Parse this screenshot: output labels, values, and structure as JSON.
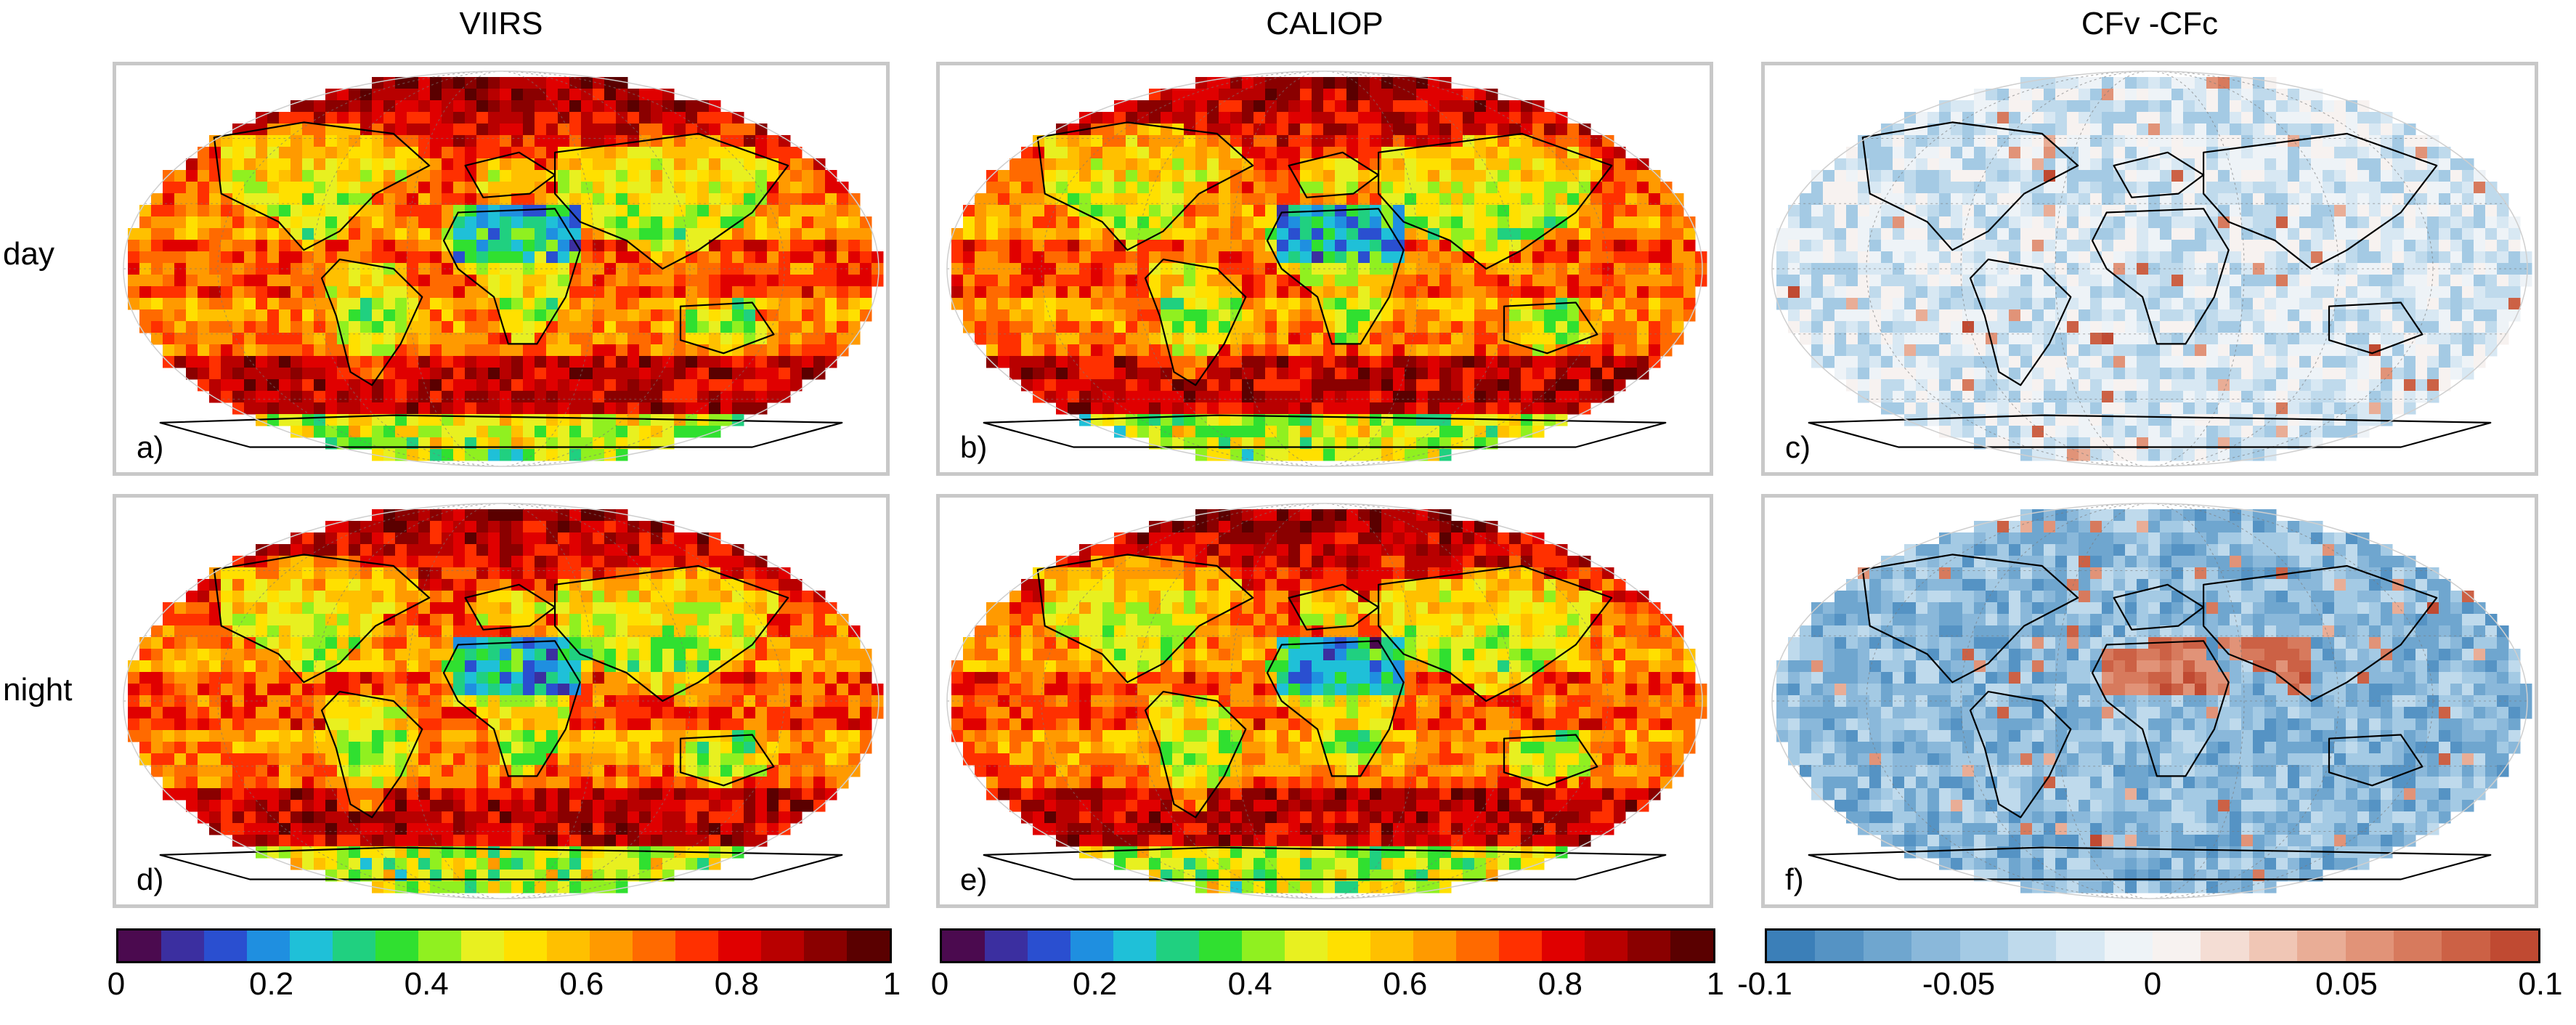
{
  "columns": [
    {
      "title": "VIIRS"
    },
    {
      "title": "CALIOP"
    },
    {
      "title": "CFv -CFc"
    }
  ],
  "rows": [
    {
      "label": "day"
    },
    {
      "label": "night"
    }
  ],
  "panels": [
    {
      "letter": "a)",
      "variable": "VIIRS cloud fraction",
      "time": "day",
      "colormap": "jet"
    },
    {
      "letter": "b)",
      "variable": "CALIOP cloud fraction",
      "time": "day",
      "colormap": "jet"
    },
    {
      "letter": "c)",
      "variable": "CFv -CFc difference",
      "time": "day",
      "colormap": "diverging"
    },
    {
      "letter": "d)",
      "variable": "VIIRS cloud fraction",
      "time": "night",
      "colormap": "jet"
    },
    {
      "letter": "e)",
      "variable": "CALIOP cloud fraction",
      "time": "night",
      "colormap": "jet"
    },
    {
      "letter": "f)",
      "variable": "CFv -CFc difference",
      "time": "night",
      "colormap": "diverging"
    }
  ],
  "colorbars": [
    {
      "range": [
        0,
        1
      ],
      "ticks": [
        "0",
        "0.2",
        "0.4",
        "0.6",
        "0.8",
        "1"
      ],
      "colors": [
        "#4b0a4f",
        "#3b2fa0",
        "#2a4fd0",
        "#1f8fe0",
        "#1fc0d8",
        "#20d080",
        "#30e030",
        "#90f020",
        "#e8f020",
        "#ffe000",
        "#ffc000",
        "#ff9a00",
        "#ff6a00",
        "#ff3000",
        "#e00000",
        "#b80000",
        "#8a0000",
        "#5a0000"
      ]
    },
    {
      "range": [
        0,
        1
      ],
      "ticks": [
        "0",
        "0.2",
        "0.4",
        "0.6",
        "0.8",
        "1"
      ],
      "colors": [
        "#4b0a4f",
        "#3b2fa0",
        "#2a4fd0",
        "#1f8fe0",
        "#1fc0d8",
        "#20d080",
        "#30e030",
        "#90f020",
        "#e8f020",
        "#ffe000",
        "#ffc000",
        "#ff9a00",
        "#ff6a00",
        "#ff3000",
        "#e00000",
        "#b80000",
        "#8a0000",
        "#5a0000"
      ]
    },
    {
      "range": [
        -0.1,
        0.1
      ],
      "ticks": [
        "-0.1",
        "-0.05",
        "0",
        "0.05",
        "0.1"
      ],
      "colors": [
        "#3b7fb8",
        "#5593c4",
        "#6fa6cf",
        "#8ab8da",
        "#a4cae4",
        "#bfdaec",
        "#d8e8f3",
        "#eef3f7",
        "#f7f2f0",
        "#f4ddd4",
        "#f0c6b5",
        "#e9ad96",
        "#e19378",
        "#d77a5d",
        "#cc6145",
        "#c04a32"
      ]
    }
  ]
}
